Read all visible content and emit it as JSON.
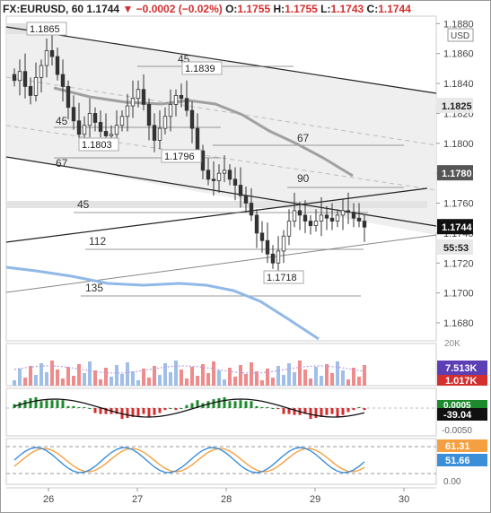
{
  "header": {
    "symbol": "FX:EURUSD",
    "timeframe": "60",
    "last": "1.1744",
    "change": "−0.0002 (−0.02%)",
    "open": "1.1755",
    "high": "1.1755",
    "low": "1.1743",
    "close": "1.1744"
  },
  "currency_label": "USD",
  "colors": {
    "up": "#26a69a",
    "down": "#d32f2f",
    "ma_fast": "#90b8e8",
    "ma_slow": "#a0a0a0",
    "stoch_k": "#3b8fd9",
    "stoch_d": "#f5a040"
  },
  "chart_data": [
    {
      "type": "candlestick",
      "ylim": [
        1.1668,
        1.1885
      ],
      "y_ticks": [
        "1.1880",
        "1.1860",
        "1.1840",
        "1.1820",
        "1.1800",
        "1.1780",
        "1.1760",
        "1.1740",
        "1.1720",
        "1.1700",
        "1.1680"
      ],
      "x_ticks": [
        "26",
        "27",
        "28",
        "29",
        "30"
      ],
      "price_badges": [
        "1.1825",
        "1.1780",
        "1.1744"
      ],
      "countdown": "55:53",
      "annotations": [
        "1.1865",
        "1.1839",
        "1.1803",
        "1.1796",
        "1.1718"
      ],
      "fib_labels": [
        "45",
        "45",
        "67",
        "67",
        "90",
        "45",
        "112",
        "135"
      ],
      "series": [
        {
          "name": "close",
          "values": [
            1.1842,
            1.1848,
            1.1838,
            1.1832,
            1.1844,
            1.1852,
            1.1862,
            1.1858,
            1.1846,
            1.1838,
            1.1824,
            1.1815,
            1.1806,
            1.1812,
            1.182,
            1.1814,
            1.1808,
            1.1805,
            1.1806,
            1.1812,
            1.1818,
            1.1825,
            1.183,
            1.1836,
            1.1826,
            1.1812,
            1.1802,
            1.181,
            1.1818,
            1.1826,
            1.1832,
            1.183,
            1.1822,
            1.181,
            1.1795,
            1.1782,
            1.1776,
            1.1775,
            1.178,
            1.1782,
            1.1776,
            1.1772,
            1.1765,
            1.176,
            1.1752,
            1.174,
            1.1735,
            1.1726,
            1.172,
            1.1728,
            1.1738,
            1.1748,
            1.1755,
            1.1752,
            1.1748,
            1.1745,
            1.1748,
            1.1752,
            1.175,
            1.1748,
            1.1752,
            1.1755,
            1.1754,
            1.175,
            1.1748,
            1.1744
          ]
        }
      ]
    },
    {
      "type": "bar",
      "name": "volume",
      "ylabel": "20K",
      "values_label": [
        "7.513K",
        "1.017K"
      ]
    },
    {
      "type": "histogram",
      "name": "macd",
      "y_ticks": [
        "0.0005",
        "-0.0050"
      ],
      "values_label": [
        "0.0005",
        "-39.04"
      ]
    },
    {
      "type": "line",
      "name": "stochastic",
      "y_ticks": [
        "0.00"
      ],
      "values_label": [
        "61.31",
        "51.66"
      ]
    }
  ]
}
